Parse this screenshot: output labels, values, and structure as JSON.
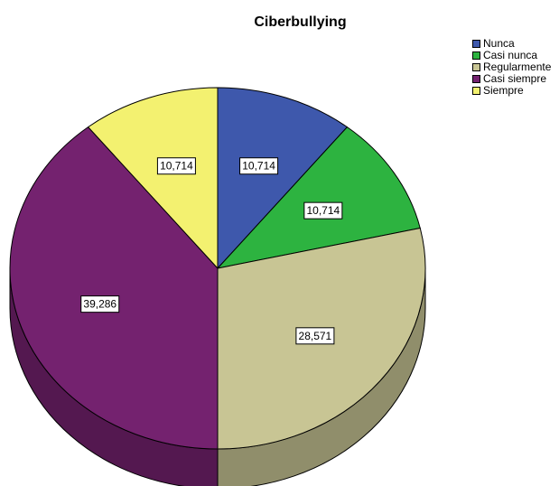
{
  "chart_data": {
    "type": "pie",
    "title": "Ciberbullying",
    "categories": [
      "Nunca",
      "Casi nunca",
      "Regularmente",
      "Casi siempre",
      "Siempre"
    ],
    "values": [
      10.714,
      10.714,
      28.571,
      39.286,
      10.714
    ],
    "value_labels": [
      "10,714",
      "10,714",
      "28,571",
      "39,286",
      "10,714"
    ],
    "colors": [
      "#3e58ac",
      "#2db340",
      "#c8c594",
      "#74226f",
      "#f3f170"
    ],
    "style": "3d",
    "legend_position": "top-right"
  }
}
